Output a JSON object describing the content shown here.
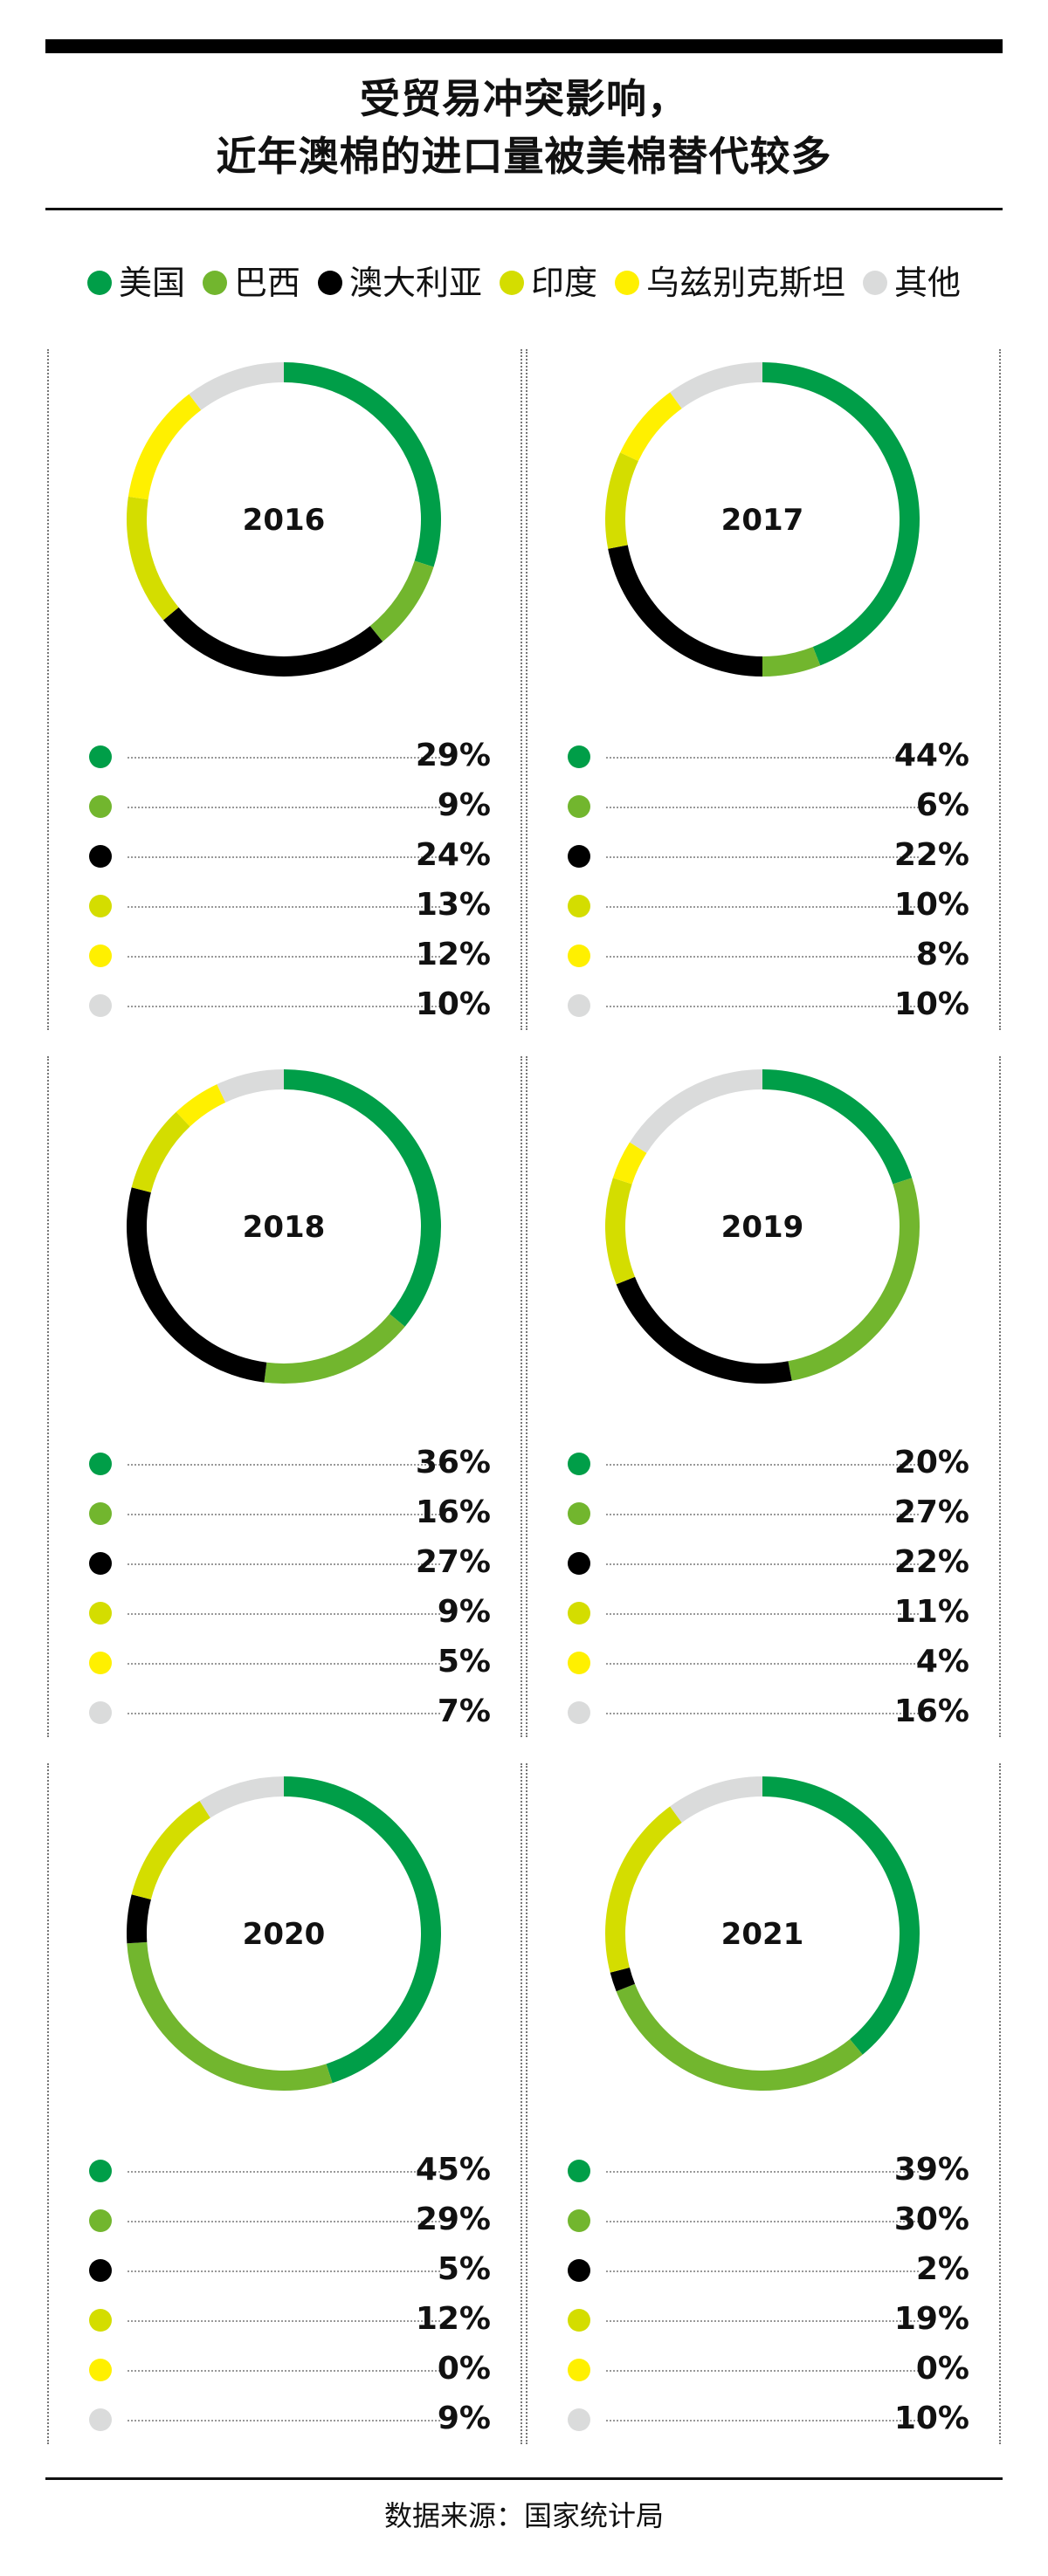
{
  "title": {
    "line1": "受贸易冲突影响，",
    "line2": "近年澳棉的进口量被美棉替代较多"
  },
  "colors": {
    "美国": "#009e48",
    "巴西": "#72b62e",
    "澳大利亚": "#000000",
    "印度": "#d4dd00",
    "乌兹别克斯坦": "#fff000",
    "其他": "#dadbdb"
  },
  "legend": [
    "美国",
    "巴西",
    "澳大利亚",
    "印度",
    "乌兹别克斯坦",
    "其他"
  ],
  "source": "数据来源：国家统计局",
  "chart_data": [
    {
      "type": "pie",
      "title": "2016",
      "categories": [
        "美国",
        "巴西",
        "澳大利亚",
        "印度",
        "乌兹别克斯坦",
        "其他"
      ],
      "values": [
        29,
        9,
        24,
        13,
        12,
        10
      ],
      "labels": [
        "29%",
        "9%",
        "24%",
        "13%",
        "12%",
        "10%"
      ]
    },
    {
      "type": "pie",
      "title": "2017",
      "categories": [
        "美国",
        "巴西",
        "澳大利亚",
        "印度",
        "乌兹别克斯坦",
        "其他"
      ],
      "values": [
        44,
        6,
        22,
        10,
        8,
        10
      ],
      "labels": [
        "44%",
        "6%",
        "22%",
        "10%",
        "8%",
        "10%"
      ]
    },
    {
      "type": "pie",
      "title": "2018",
      "categories": [
        "美国",
        "巴西",
        "澳大利亚",
        "印度",
        "乌兹别克斯坦",
        "其他"
      ],
      "values": [
        36,
        16,
        27,
        9,
        5,
        7
      ],
      "labels": [
        "36%",
        "16%",
        "27%",
        "9%",
        "5%",
        "7%"
      ]
    },
    {
      "type": "pie",
      "title": "2019",
      "categories": [
        "美国",
        "巴西",
        "澳大利亚",
        "印度",
        "乌兹别克斯坦",
        "其他"
      ],
      "values": [
        20,
        27,
        22,
        11,
        4,
        16
      ],
      "labels": [
        "20%",
        "27%",
        "22%",
        "11%",
        "4%",
        "16%"
      ]
    },
    {
      "type": "pie",
      "title": "2020",
      "categories": [
        "美国",
        "巴西",
        "澳大利亚",
        "印度",
        "乌兹别克斯坦",
        "其他"
      ],
      "values": [
        45,
        29,
        5,
        12,
        0,
        9
      ],
      "labels": [
        "45%",
        "29%",
        "5%",
        "12%",
        "0%",
        "9%"
      ]
    },
    {
      "type": "pie",
      "title": "2021",
      "categories": [
        "美国",
        "巴西",
        "澳大利亚",
        "印度",
        "乌兹别克斯坦",
        "其他"
      ],
      "values": [
        39,
        30,
        2,
        19,
        0,
        10
      ],
      "labels": [
        "39%",
        "30%",
        "2%",
        "19%",
        "0%",
        "10%"
      ]
    }
  ]
}
